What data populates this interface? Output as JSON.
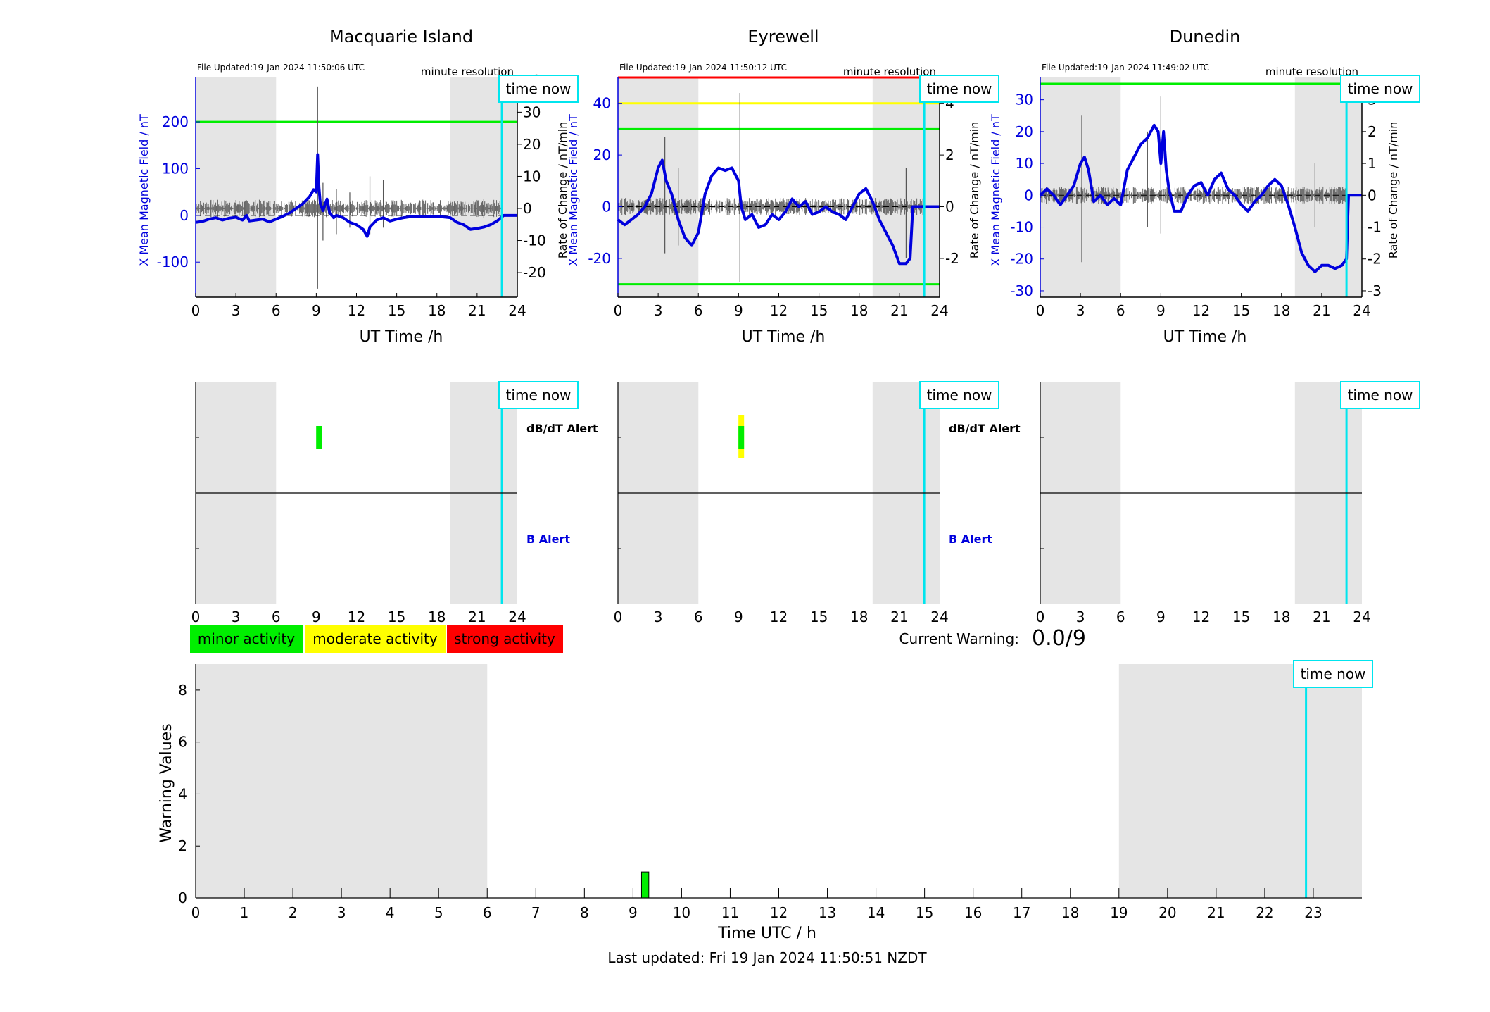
{
  "colors": {
    "trace": "#0000dd",
    "grey_band": "#e5e5e5",
    "time_now": "#00e5ee",
    "minor": "#00ee00",
    "moderate": "#ffff00",
    "strong": "#ff0000",
    "rate": "#000000"
  },
  "common": {
    "resolution_label": "minute resolution",
    "time_now_label": "time now",
    "xlabel": "UT Time /h",
    "ylabel_left": "X Mean Magnetic Field / nT",
    "ylabel_right": "Rate of Change / nT/min",
    "dbdt_label": "dB/dT Alert",
    "b_label": "B Alert",
    "time_now_hour": 22.85
  },
  "legend": {
    "minor": "minor activity",
    "moderate": "moderate activity",
    "strong": "strong activity"
  },
  "current_warning": {
    "label": "Current Warning:",
    "value": "0.0/9"
  },
  "footer": {
    "last_updated": "Last updated: Fri 19 Jan 2024 11:50:51 NZDT"
  },
  "chart_data": [
    {
      "type": "line",
      "title": "Macquarie Island",
      "file_updated": "File Updated:19-Jan-2024 11:50:06 UTC",
      "xlabel": "UT Time /h",
      "ylabel": "X Mean Magnetic Field / nT",
      "y2label": "Rate of Change / nT/min",
      "xlim": [
        0,
        24
      ],
      "xticks": [
        0,
        3,
        6,
        9,
        12,
        15,
        18,
        21,
        24
      ],
      "ylim": [
        -175,
        295
      ],
      "yticks": [
        -100,
        0,
        100,
        200
      ],
      "y2lim": [
        -27.67,
        40.84
      ],
      "y2ticks": [
        -20,
        -10,
        0,
        10,
        20,
        30,
        40
      ],
      "grey_bands": [
        [
          0,
          6
        ],
        [
          19,
          24
        ]
      ],
      "thresholds": [
        {
          "value": 200,
          "color": "green"
        }
      ],
      "series": [
        {
          "x": [
            0,
            0.5,
            1,
            1.5,
            2,
            2.5,
            3,
            3.5,
            3.8,
            4,
            4.5,
            5,
            5.5,
            6,
            6.5,
            7,
            7.5,
            8,
            8.5,
            8.8,
            9,
            9.1,
            9.2,
            9.3,
            9.5,
            9.8,
            10,
            10.3,
            10.5,
            11,
            11.5,
            12,
            12.5,
            12.8,
            13,
            13.5,
            14,
            14.5,
            15,
            15.5,
            16,
            17,
            18,
            19,
            19.5,
            20,
            20.5,
            21,
            21.5,
            22,
            22.5,
            22.85,
            23,
            24
          ],
          "y": [
            -15,
            -13,
            -8,
            -5,
            -10,
            -6,
            -4,
            -10,
            0,
            -12,
            -10,
            -8,
            -14,
            -8,
            -2,
            5,
            15,
            25,
            40,
            55,
            50,
            130,
            60,
            25,
            10,
            35,
            5,
            -5,
            0,
            -5,
            -15,
            -20,
            -30,
            -45,
            -25,
            -10,
            -5,
            -12,
            -8,
            -5,
            -3,
            -2,
            -2,
            -5,
            -15,
            -20,
            -30,
            -28,
            -25,
            -20,
            -12,
            -3,
            0,
            0
          ]
        }
      ],
      "rate_of_change": [
        {
          "x": 9.1,
          "y": [
            -25,
            38
          ]
        },
        {
          "x": 9.5,
          "y": [
            -10,
            8
          ]
        },
        {
          "x": 10.5,
          "y": [
            -8,
            6
          ]
        },
        {
          "x": 11.5,
          "y": [
            -6,
            5
          ]
        },
        {
          "x": 13,
          "y": [
            -8,
            10
          ]
        },
        {
          "x": 14,
          "y": [
            -6,
            9
          ]
        },
        {
          "x": 21.5,
          "y": [
            -3,
            3
          ]
        }
      ],
      "dbdt_alerts": [
        {
          "x": 9.2,
          "level": "minor"
        }
      ],
      "b_alerts": []
    },
    {
      "type": "line",
      "title": "Eyrewell",
      "file_updated": "File Updated:19-Jan-2024 11:50:12 UTC",
      "xlabel": "UT Time /h",
      "ylabel": "X Mean Magnetic Field / nT",
      "y2label": "Rate of Change / nT/min",
      "xlim": [
        0,
        24
      ],
      "xticks": [
        0,
        3,
        6,
        9,
        12,
        15,
        18,
        21,
        24
      ],
      "ylim": [
        -35,
        50
      ],
      "yticks": [
        -20,
        0,
        20,
        40
      ],
      "y2lim": [
        -3.5,
        5.0
      ],
      "y2ticks": [
        -2,
        0,
        2,
        4
      ],
      "grey_bands": [
        [
          0,
          6
        ],
        [
          19,
          24
        ]
      ],
      "thresholds": [
        {
          "value": 50,
          "color": "red"
        },
        {
          "value": 40,
          "color": "yellow"
        },
        {
          "value": 30,
          "color": "green"
        },
        {
          "value": -30,
          "color": "green"
        }
      ],
      "series": [
        {
          "x": [
            0,
            0.5,
            1,
            1.5,
            2,
            2.5,
            3,
            3.3,
            3.6,
            4,
            4.5,
            5,
            5.5,
            6,
            6.5,
            7,
            7.5,
            8,
            8.5,
            9,
            9.2,
            9.5,
            10,
            10.5,
            11,
            11.5,
            12,
            12.5,
            13,
            13.5,
            14,
            14.5,
            15,
            15.5,
            16,
            16.5,
            17,
            17.5,
            18,
            18.5,
            19,
            19.5,
            20,
            20.5,
            21,
            21.5,
            21.8,
            22,
            22.5,
            22.85,
            23,
            24
          ],
          "y": [
            -5,
            -7,
            -5,
            -3,
            0,
            5,
            15,
            18,
            10,
            5,
            -5,
            -12,
            -15,
            -10,
            5,
            12,
            15,
            14,
            15,
            10,
            0,
            -5,
            -3,
            -8,
            -7,
            -3,
            -5,
            -2,
            3,
            0,
            2,
            -3,
            -2,
            0,
            -2,
            -3,
            -5,
            0,
            5,
            7,
            2,
            -5,
            -10,
            -15,
            -22,
            -22,
            -20,
            0,
            0,
            0,
            0,
            0
          ]
        }
      ],
      "rate_of_change": [
        {
          "x": 3.5,
          "y": [
            -1.8,
            2.7
          ]
        },
        {
          "x": 9.1,
          "y": [
            -2.9,
            4.4
          ]
        },
        {
          "x": 4.5,
          "y": [
            -1.5,
            1.5
          ]
        },
        {
          "x": 21.5,
          "y": [
            -2.0,
            1.5
          ]
        }
      ],
      "dbdt_alerts": [
        {
          "x": 9.2,
          "level": "moderate"
        }
      ],
      "b_alerts": []
    },
    {
      "type": "line",
      "title": "Dunedin",
      "file_updated": "File Updated:19-Jan-2024 11:49:02 UTC",
      "xlabel": "UT Time /h",
      "ylabel": "X Mean Magnetic Field / nT",
      "y2label": "Rate of Change / nT/min",
      "xlim": [
        0,
        24
      ],
      "xticks": [
        0,
        3,
        6,
        9,
        12,
        15,
        18,
        21,
        24
      ],
      "ylim": [
        -32,
        37
      ],
      "yticks": [
        -30,
        -20,
        -10,
        0,
        10,
        20,
        30
      ],
      "y2lim": [
        -3.2,
        3.7
      ],
      "y2ticks": [
        -3,
        -2,
        -1,
        0,
        1,
        2,
        3
      ],
      "grey_bands": [
        [
          0,
          6
        ],
        [
          19,
          24
        ]
      ],
      "thresholds": [
        {
          "value": 35,
          "color": "green"
        }
      ],
      "series": [
        {
          "x": [
            0,
            0.5,
            1,
            1.5,
            2,
            2.5,
            3,
            3.3,
            3.6,
            4,
            4.5,
            5,
            5.5,
            6,
            6.5,
            7,
            7.5,
            8,
            8.5,
            8.8,
            9,
            9.2,
            9.4,
            9.6,
            10,
            10.5,
            11,
            11.5,
            12,
            12.5,
            13,
            13.5,
            14,
            14.5,
            15,
            15.5,
            16,
            16.5,
            17,
            17.5,
            18,
            18.5,
            19,
            19.5,
            20,
            20.5,
            21,
            21.5,
            22,
            22.5,
            22.85,
            23,
            24
          ],
          "y": [
            0,
            2,
            0,
            -3,
            0,
            3,
            10,
            12,
            8,
            -2,
            0,
            -3,
            -1,
            -3,
            8,
            12,
            16,
            18,
            22,
            20,
            10,
            20,
            8,
            2,
            -5,
            -5,
            0,
            3,
            4,
            0,
            5,
            7,
            2,
            0,
            -3,
            -5,
            -2,
            0,
            3,
            5,
            3,
            -3,
            -10,
            -18,
            -22,
            -24,
            -22,
            -22,
            -23,
            -22,
            -20,
            0,
            0
          ]
        }
      ],
      "rate_of_change": [
        {
          "x": 3.1,
          "y": [
            -2.1,
            2.5
          ]
        },
        {
          "x": 9.0,
          "y": [
            -1.2,
            3.1
          ]
        },
        {
          "x": 8.0,
          "y": [
            -1.0,
            2.0
          ]
        },
        {
          "x": 20.5,
          "y": [
            -1.0,
            1.0
          ]
        }
      ],
      "dbdt_alerts": [],
      "b_alerts": []
    },
    {
      "type": "bar",
      "title": "",
      "xlabel": "Time UTC / h",
      "ylabel": "Warning Values",
      "xlim": [
        0,
        24
      ],
      "xticks": [
        0,
        1,
        2,
        3,
        4,
        5,
        6,
        7,
        8,
        9,
        10,
        11,
        12,
        13,
        14,
        15,
        16,
        17,
        18,
        19,
        20,
        21,
        22,
        23
      ],
      "ylim": [
        0,
        9
      ],
      "yticks": [
        0,
        2,
        4,
        6,
        8
      ],
      "grey_bands": [
        [
          0,
          6
        ],
        [
          19,
          24
        ]
      ],
      "bars": [
        {
          "x": 9.25,
          "width": 0.15,
          "value": 1,
          "level": "minor"
        }
      ]
    }
  ]
}
